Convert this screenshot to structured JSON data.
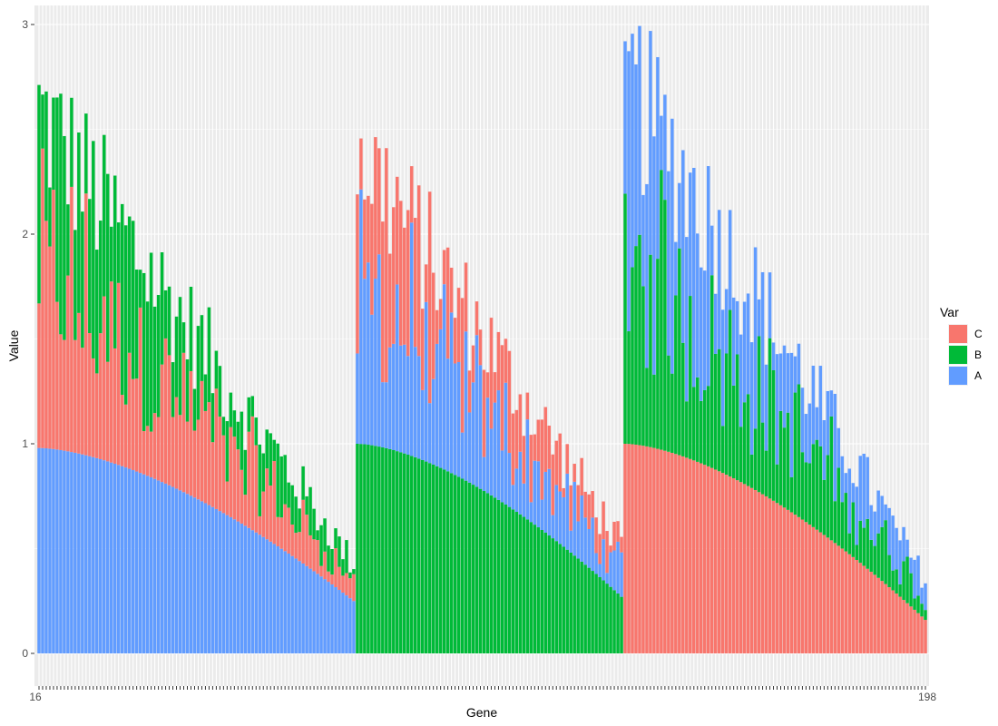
{
  "chart_data": {
    "type": "bar",
    "stacked": true,
    "xlabel": "Gene",
    "ylabel": "Value",
    "ylim": [
      -0.1,
      3.05
    ],
    "yticks": [
      0,
      1,
      2,
      3
    ],
    "grid": true,
    "legend_position": "right",
    "legend_title": "Var",
    "legend_items": [
      {
        "label": "C",
        "color": "#F8766D"
      },
      {
        "label": "B",
        "color": "#00BA38"
      },
      {
        "label": "A",
        "color": "#619CFF"
      }
    ],
    "x_tick_labels": [
      "16",
      "198"
    ],
    "groups": [
      {
        "base": "A",
        "stack_order": [
          "C",
          "B"
        ],
        "count": 88,
        "base_max": 0.98,
        "base_min": 0.25,
        "top_max": 2.74,
        "top_min": 0.45
      },
      {
        "base": "B",
        "stack_order": [
          "A",
          "C"
        ],
        "count": 74,
        "base_max": 1.0,
        "base_min": 0.27,
        "top_max": 2.57,
        "top_min": 0.55
      },
      {
        "base": "C",
        "stack_order": [
          "B",
          "A"
        ],
        "count": 84,
        "base_max": 1.0,
        "base_min": 0.16,
        "top_max": 2.92,
        "top_min": 0.37
      }
    ]
  }
}
